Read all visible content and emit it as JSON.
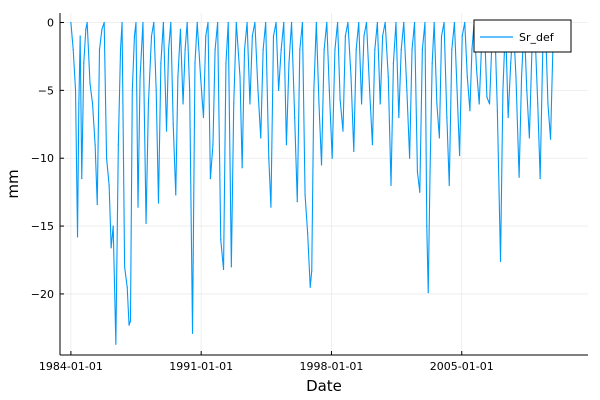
{
  "chart_data": {
    "type": "line",
    "xlabel": "Date",
    "ylabel": "mm",
    "x_ticks": [
      "1984-01-01",
      "1991-01-01",
      "1998-01-01",
      "2005-01-01"
    ],
    "y_ticks": [
      "0",
      "−5",
      "−10",
      "−15",
      "−20"
    ],
    "xlim": [
      "1983-06-01",
      "2011-10-15"
    ],
    "ylim": [
      -24.5,
      0.7
    ],
    "grid": true,
    "legend_position": "top-right",
    "colors": {
      "series": "#009AFA",
      "grid": "#EBEBEB",
      "axis": "#000000"
    },
    "series": [
      {
        "name": "Sr_def",
        "points": [
          [
            "1984-01-01",
            0
          ],
          [
            "1984-02-15",
            -2
          ],
          [
            "1984-04-01",
            -5
          ],
          [
            "1984-05-10",
            -15.8
          ],
          [
            "1984-06-05",
            -6
          ],
          [
            "1984-07-01",
            -1
          ],
          [
            "1984-08-01",
            -11.5
          ],
          [
            "1984-09-10",
            -3
          ],
          [
            "1984-10-20",
            -0.5
          ],
          [
            "1984-11-15",
            0
          ],
          [
            "1985-01-10",
            -4.5
          ],
          [
            "1985-03-01",
            -6
          ],
          [
            "1985-04-20",
            -9
          ],
          [
            "1985-06-01",
            -13.4
          ],
          [
            "1985-07-15",
            -2
          ],
          [
            "1985-09-01",
            -0.5
          ],
          [
            "1985-10-15",
            0
          ],
          [
            "1985-12-01",
            -10
          ],
          [
            "1986-01-20",
            -12
          ],
          [
            "1986-03-01",
            -16.6
          ],
          [
            "1986-04-10",
            -15
          ],
          [
            "1986-06-01",
            -23.7
          ],
          [
            "1986-07-20",
            -9
          ],
          [
            "1986-09-01",
            -2
          ],
          [
            "1986-10-01",
            0
          ],
          [
            "1986-11-20",
            -18
          ],
          [
            "1987-01-10",
            -19.5
          ],
          [
            "1987-02-15",
            -22.3
          ],
          [
            "1987-03-15",
            -22
          ],
          [
            "1987-04-20",
            -5
          ],
          [
            "1987-06-01",
            -1
          ],
          [
            "1987-07-01",
            0
          ],
          [
            "1987-08-10",
            -13.6
          ],
          [
            "1987-09-20",
            -4
          ],
          [
            "1987-11-15",
            0
          ],
          [
            "1988-01-15",
            -14.8
          ],
          [
            "1988-03-01",
            -6
          ],
          [
            "1988-05-01",
            -1
          ],
          [
            "1988-06-15",
            0
          ],
          [
            "1988-08-01",
            -5
          ],
          [
            "1988-09-15",
            -13.3
          ],
          [
            "1988-11-01",
            -3
          ],
          [
            "1988-12-20",
            0
          ],
          [
            "1989-02-20",
            -8
          ],
          [
            "1989-04-01",
            -2
          ],
          [
            "1989-05-15",
            0
          ],
          [
            "1989-07-01",
            -7.5
          ],
          [
            "1989-08-20",
            -12.7
          ],
          [
            "1989-10-01",
            -4
          ],
          [
            "1989-11-20",
            -0.5
          ],
          [
            "1990-01-10",
            -6
          ],
          [
            "1990-02-20",
            -2
          ],
          [
            "1990-04-01",
            0
          ],
          [
            "1990-05-20",
            -5
          ],
          [
            "1990-07-15",
            -22.9
          ],
          [
            "1990-09-01",
            -3
          ],
          [
            "1990-10-15",
            0
          ],
          [
            "1990-12-20",
            -4
          ],
          [
            "1991-02-15",
            -7
          ],
          [
            "1991-04-01",
            -1
          ],
          [
            "1991-05-15",
            0
          ],
          [
            "1991-07-01",
            -11.5
          ],
          [
            "1991-08-20",
            -9
          ],
          [
            "1991-10-01",
            -2
          ],
          [
            "1991-11-20",
            0
          ],
          [
            "1992-01-20",
            -16
          ],
          [
            "1992-03-15",
            -18.2
          ],
          [
            "1992-05-01",
            -3
          ],
          [
            "1992-06-15",
            0
          ],
          [
            "1992-08-15",
            -18
          ],
          [
            "1992-10-01",
            -6
          ],
          [
            "1992-11-20",
            0
          ],
          [
            "1993-02-01",
            -4
          ],
          [
            "1993-03-15",
            -10.7
          ],
          [
            "1993-05-01",
            -2
          ],
          [
            "1993-06-20",
            0
          ],
          [
            "1993-08-15",
            -6
          ],
          [
            "1993-10-01",
            -1
          ],
          [
            "1993-11-20",
            0
          ],
          [
            "1994-01-20",
            -5
          ],
          [
            "1994-03-15",
            -8.5
          ],
          [
            "1994-05-01",
            -2
          ],
          [
            "1994-06-20",
            0
          ],
          [
            "1994-08-20",
            -10
          ],
          [
            "1994-10-01",
            -13.6
          ],
          [
            "1994-11-20",
            -1
          ],
          [
            "1995-01-10",
            0
          ],
          [
            "1995-03-01",
            -5
          ],
          [
            "1995-04-20",
            -2
          ],
          [
            "1995-06-10",
            0
          ],
          [
            "1995-08-01",
            -9
          ],
          [
            "1995-09-20",
            -3
          ],
          [
            "1995-11-10",
            0
          ],
          [
            "1996-01-10",
            -7
          ],
          [
            "1996-03-01",
            -13.2
          ],
          [
            "1996-04-20",
            -2
          ],
          [
            "1996-06-10",
            0
          ],
          [
            "1996-08-01",
            -12.7
          ],
          [
            "1996-09-20",
            -15.5
          ],
          [
            "1996-11-10",
            -19.5
          ],
          [
            "1996-12-10",
            -18.3
          ],
          [
            "1997-01-20",
            -5
          ],
          [
            "1997-03-10",
            0
          ],
          [
            "1997-05-01",
            -6
          ],
          [
            "1997-06-20",
            -10.5
          ],
          [
            "1997-08-10",
            -2
          ],
          [
            "1997-10-01",
            0
          ],
          [
            "1997-11-20",
            -5
          ],
          [
            "1998-01-15",
            -10
          ],
          [
            "1998-03-10",
            -2
          ],
          [
            "1998-05-01",
            0
          ],
          [
            "1998-06-20",
            -5.7
          ],
          [
            "1998-08-15",
            -8
          ],
          [
            "1998-10-01",
            -1
          ],
          [
            "1998-11-20",
            0
          ],
          [
            "1999-01-20",
            -4
          ],
          [
            "1999-03-15",
            -9.5
          ],
          [
            "1999-05-01",
            -2
          ],
          [
            "1999-06-20",
            0
          ],
          [
            "1999-08-15",
            -6
          ],
          [
            "1999-10-01",
            -1
          ],
          [
            "1999-11-20",
            0
          ],
          [
            "2000-01-20",
            -5
          ],
          [
            "2000-03-15",
            -9
          ],
          [
            "2000-05-01",
            -2
          ],
          [
            "2000-06-20",
            0
          ],
          [
            "2000-08-15",
            -6
          ],
          [
            "2000-10-01",
            -1
          ],
          [
            "2000-11-20",
            0
          ],
          [
            "2001-01-20",
            -4
          ],
          [
            "2001-03-15",
            -12
          ],
          [
            "2001-05-01",
            -3
          ],
          [
            "2001-06-20",
            0
          ],
          [
            "2001-08-15",
            -7
          ],
          [
            "2001-10-01",
            -2
          ],
          [
            "2001-11-20",
            0
          ],
          [
            "2002-01-20",
            -5
          ],
          [
            "2002-03-15",
            -10
          ],
          [
            "2002-05-01",
            -2
          ],
          [
            "2002-06-20",
            0
          ],
          [
            "2002-08-15",
            -11
          ],
          [
            "2002-10-01",
            -12.5
          ],
          [
            "2002-11-20",
            -2
          ],
          [
            "2003-01-10",
            0
          ],
          [
            "2003-02-15",
            -15
          ],
          [
            "2003-03-15",
            -19.9
          ],
          [
            "2003-04-20",
            -11
          ],
          [
            "2003-06-01",
            -3
          ],
          [
            "2003-07-10",
            0
          ],
          [
            "2003-09-01",
            -6
          ],
          [
            "2003-10-20",
            -8.5
          ],
          [
            "2003-12-01",
            -1
          ],
          [
            "2004-01-20",
            0
          ],
          [
            "2004-03-15",
            -7
          ],
          [
            "2004-05-01",
            -12
          ],
          [
            "2004-06-20",
            -2
          ],
          [
            "2004-08-10",
            0
          ],
          [
            "2004-10-01",
            -5
          ],
          [
            "2004-11-20",
            -9.8
          ],
          [
            "2005-01-10",
            -1
          ],
          [
            "2005-03-01",
            0
          ],
          [
            "2005-04-20",
            -4
          ],
          [
            "2005-06-10",
            -6.5
          ],
          [
            "2005-07-20",
            -2
          ],
          [
            "2005-09-01",
            0
          ],
          [
            "2005-10-20",
            -3.5
          ],
          [
            "2005-12-10",
            -6
          ],
          [
            "2006-02-01",
            -1
          ],
          [
            "2006-03-20",
            0
          ],
          [
            "2006-05-10",
            -5.5
          ],
          [
            "2006-07-01",
            -6
          ],
          [
            "2006-08-20",
            -1
          ],
          [
            "2006-10-10",
            0
          ],
          [
            "2006-12-01",
            -6.5
          ],
          [
            "2007-02-01",
            -17.6
          ],
          [
            "2007-03-20",
            -5
          ],
          [
            "2007-05-10",
            0
          ],
          [
            "2007-07-01",
            -7
          ],
          [
            "2007-08-20",
            -3
          ],
          [
            "2007-10-10",
            0
          ],
          [
            "2007-12-01",
            -4
          ],
          [
            "2008-02-01",
            -11.4
          ],
          [
            "2008-03-20",
            -4
          ],
          [
            "2008-05-10",
            0
          ],
          [
            "2008-07-01",
            -5
          ],
          [
            "2008-08-20",
            -8.5
          ],
          [
            "2008-10-10",
            -2
          ],
          [
            "2008-12-01",
            0
          ],
          [
            "2009-02-01",
            -6
          ],
          [
            "2009-03-20",
            -11.5
          ],
          [
            "2009-05-10",
            -2
          ],
          [
            "2009-07-01",
            0
          ],
          [
            "2009-08-20",
            -6
          ],
          [
            "2009-10-10",
            -8.6
          ],
          [
            "2009-12-01",
            -1
          ],
          [
            "2010-01-20",
            0
          ]
        ]
      }
    ]
  }
}
